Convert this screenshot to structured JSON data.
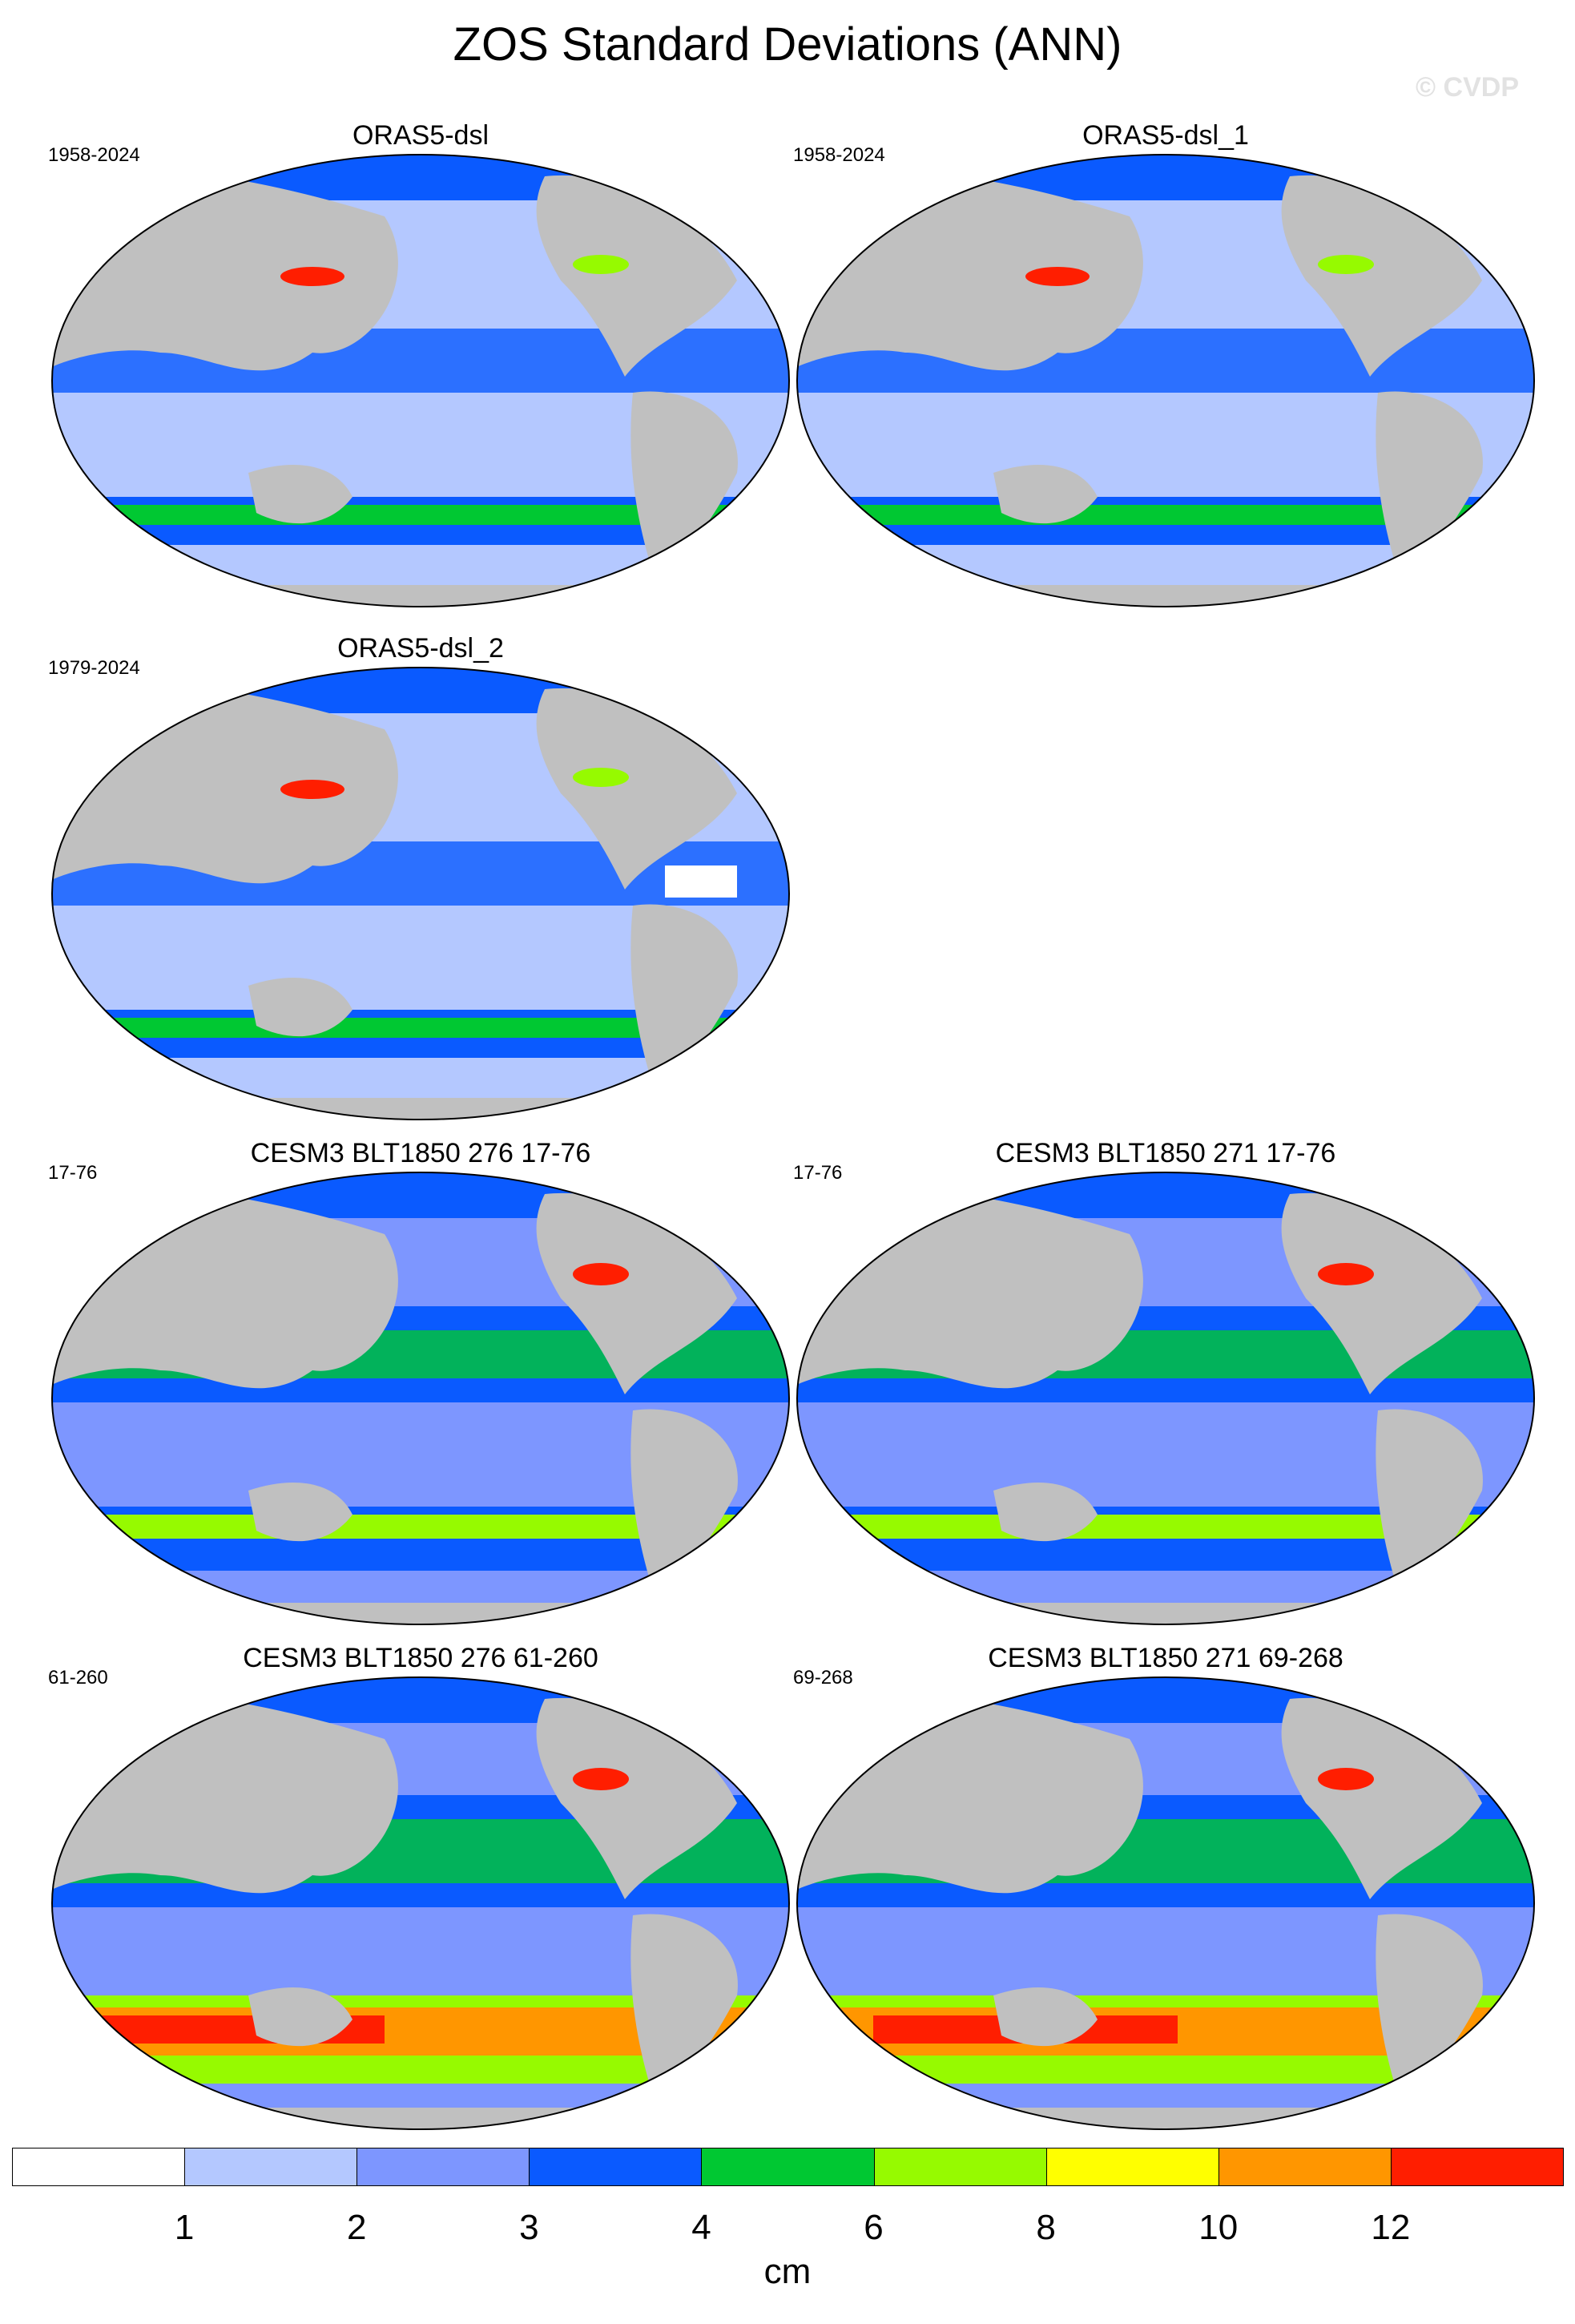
{
  "title": "ZOS Standard Deviations (ANN)",
  "watermark": "© CVDP",
  "panels": [
    {
      "title": "ORAS5-dsl",
      "years": "1958-2024"
    },
    {
      "title": "ORAS5-dsl_1",
      "years": "1958-2024"
    },
    {
      "title": "ORAS5-dsl_2",
      "years": "1979-2024"
    },
    {
      "title": "CESM3 BLT1850 276 17-76",
      "years": "17-76"
    },
    {
      "title": "CESM3 BLT1850 271 17-76",
      "years": "17-76"
    },
    {
      "title": "CESM3 BLT1850 276 61-260",
      "years": "61-260"
    },
    {
      "title": "CESM3 BLT1850 271 69-268",
      "years": "69-268"
    }
  ],
  "colorbar": {
    "units": "cm",
    "labels": [
      "1",
      "2",
      "3",
      "4",
      "6",
      "8",
      "10",
      "12"
    ],
    "colors": [
      "#ffffff",
      "#b4c8ff",
      "#7d96ff",
      "#0a5aff",
      "#00c832",
      "#96fa00",
      "#ffff00",
      "#ff9600",
      "#ff1e00"
    ]
  },
  "colors": {
    "land": "#c0c0c0",
    "ocean_base": "#b4c8ff"
  }
}
